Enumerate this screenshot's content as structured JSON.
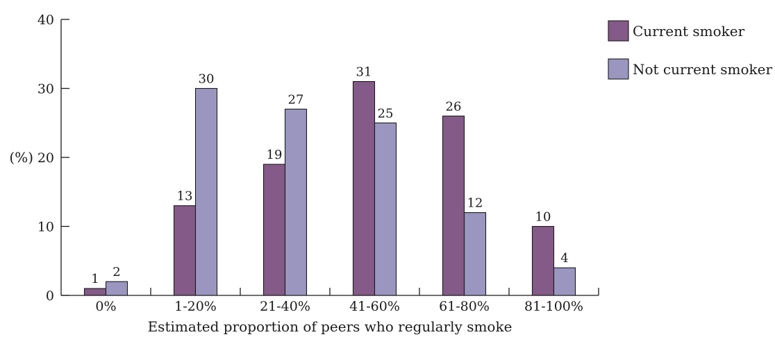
{
  "chart_data": {
    "type": "bar",
    "categories": [
      "0%",
      "1-20%",
      "21-40%",
      "41-60%",
      "61-80%",
      "81-100%"
    ],
    "series": [
      {
        "name": "Current smoker",
        "values": [
          1,
          13,
          19,
          31,
          26,
          10
        ],
        "color": "#845a88"
      },
      {
        "name": "Not current smoker",
        "values": [
          2,
          30,
          27,
          25,
          12,
          4
        ],
        "color": "#9a96c0"
      }
    ],
    "xlabel": "Estimated proportion of peers who regularly smoke",
    "ylabel": "(%)",
    "ylim": [
      0,
      40
    ],
    "yticks": [
      0,
      10,
      20,
      30,
      40
    ],
    "legend_position": "top-right",
    "grid": false
  }
}
